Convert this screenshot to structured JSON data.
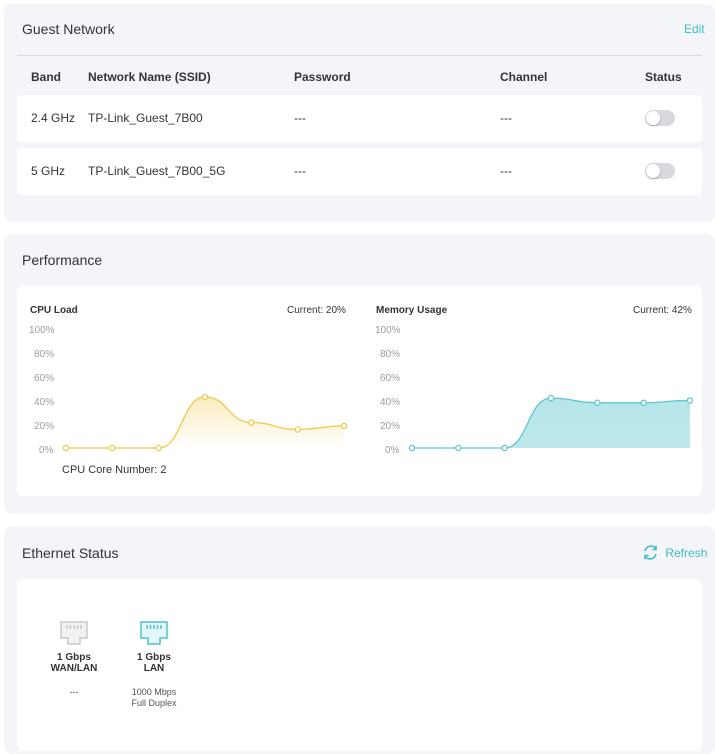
{
  "guest_network": {
    "title": "Guest Network",
    "edit_label": "Edit",
    "columns": [
      "Band",
      "Network Name (SSID)",
      "Password",
      "Channel",
      "Status"
    ],
    "rows": [
      {
        "band": "2.4 GHz",
        "ssid": "TP-Link_Guest_7B00",
        "password": "---",
        "channel": "---",
        "status": false
      },
      {
        "band": "5 GHz",
        "ssid": "TP-Link_Guest_7B00_5G",
        "password": "---",
        "channel": "---",
        "status": false
      }
    ]
  },
  "performance": {
    "title": "Performance",
    "cpu": {
      "label": "CPU Load",
      "current": "Current: 20%",
      "core_text": "CPU Core Number: 2"
    },
    "memory": {
      "label": "Memory Usage",
      "current": "Current: 42%"
    },
    "yticks": [
      "100%",
      "80%",
      "60%",
      "40%",
      "20%",
      "0%"
    ]
  },
  "chart_data": [
    {
      "type": "line",
      "title": "CPU Load",
      "x": [
        1,
        2,
        3,
        4,
        5,
        6,
        7
      ],
      "series": [
        {
          "values": [
            0,
            0,
            0,
            44,
            22,
            16,
            19
          ]
        }
      ],
      "ylim": [
        0,
        100
      ],
      "color": "#f2c94c"
    },
    {
      "type": "area",
      "title": "Memory Usage",
      "x": [
        1,
        2,
        3,
        4,
        5,
        6,
        7
      ],
      "series": [
        {
          "values": [
            0,
            0,
            0,
            43,
            39,
            39,
            41
          ]
        }
      ],
      "ylim": [
        0,
        100
      ],
      "color": "#5cc7cf"
    }
  ],
  "ethernet": {
    "title": "Ethernet Status",
    "refresh_label": "Refresh",
    "ports": [
      {
        "speed": "1 Gbps",
        "type": "WAN/LAN",
        "detail1": "---",
        "detail2": "",
        "active": false
      },
      {
        "speed": "1 Gbps",
        "type": "LAN",
        "detail1": "1000 Mbps",
        "detail2": "Full Duplex",
        "active": true
      }
    ]
  },
  "colors": {
    "accent": "#3cbdc4",
    "cpu": "#f2c94c",
    "memory": "#5cc7cf"
  }
}
